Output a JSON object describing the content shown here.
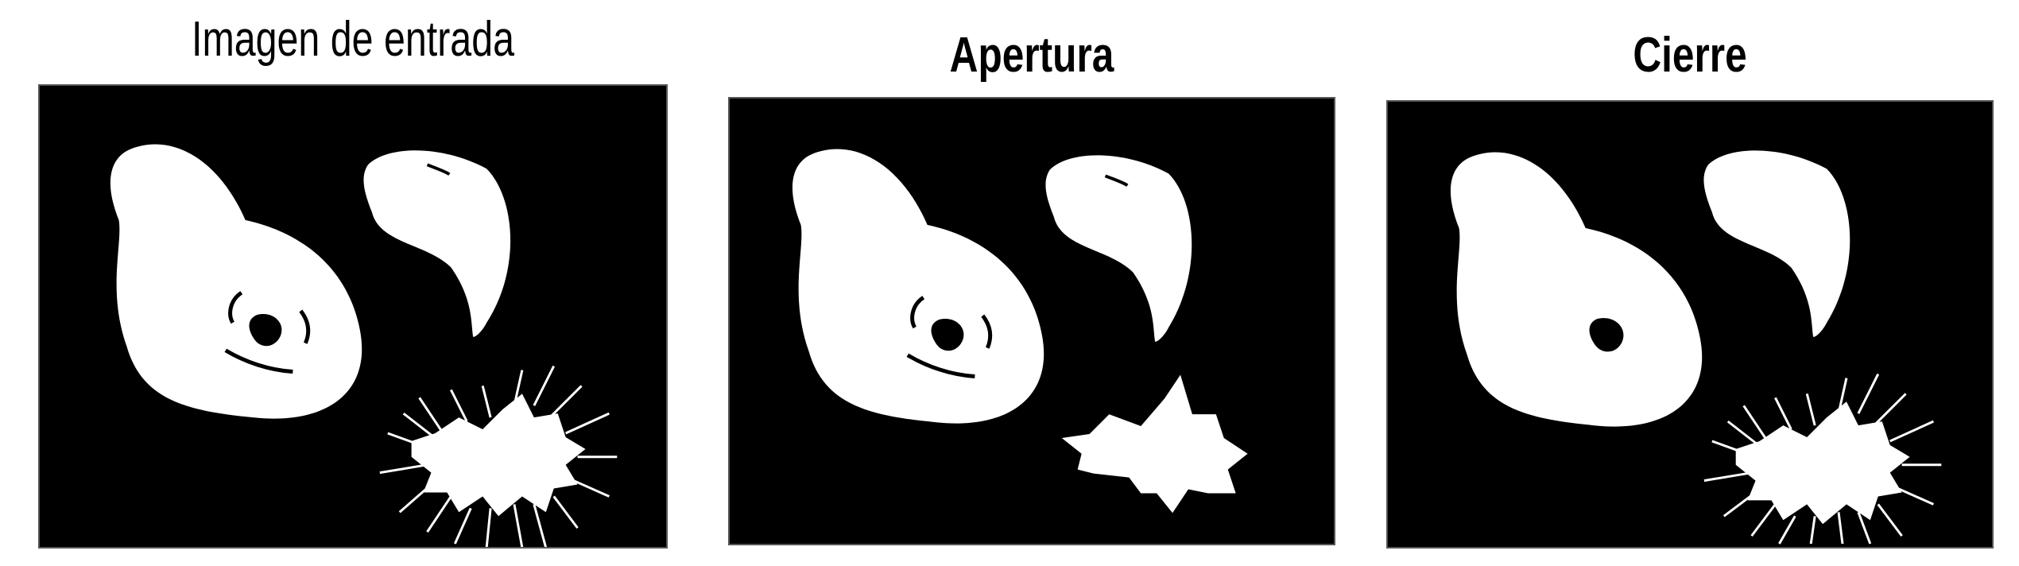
{
  "panels": [
    {
      "id": "input",
      "title": "Imagen de entrada"
    },
    {
      "id": "opening",
      "title": "Apertura"
    },
    {
      "id": "closing",
      "title": "Cierre"
    }
  ],
  "colors": {
    "background": "#000000",
    "foreground": "#ffffff",
    "page": "#ffffff"
  }
}
